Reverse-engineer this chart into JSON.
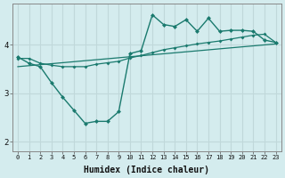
{
  "xlabel": "Humidex (Indice chaleur)",
  "bg_color": "#d4ecee",
  "grid_color": "#c0d8da",
  "line_color": "#1a7a6e",
  "xlim": [
    -0.5,
    23.5
  ],
  "ylim": [
    1.8,
    4.85
  ],
  "yticks": [
    2,
    3,
    4
  ],
  "xticks": [
    0,
    1,
    2,
    3,
    4,
    5,
    6,
    7,
    8,
    9,
    10,
    11,
    12,
    13,
    14,
    15,
    16,
    17,
    18,
    19,
    20,
    21,
    22,
    23
  ],
  "series1_x": [
    0,
    1,
    2,
    3,
    4,
    5,
    6,
    7,
    8,
    9,
    10,
    11,
    12,
    13,
    14,
    15,
    16,
    17,
    18,
    19,
    20,
    21,
    22,
    23
  ],
  "series1_y": [
    3.75,
    3.62,
    3.55,
    3.22,
    2.92,
    2.65,
    2.38,
    2.42,
    2.42,
    2.62,
    3.82,
    3.88,
    4.62,
    4.42,
    4.38,
    4.52,
    4.28,
    4.55,
    4.28,
    4.3,
    4.3,
    4.28,
    4.1,
    4.05
  ],
  "series2_x": [
    0,
    1,
    2,
    3,
    4,
    5,
    6,
    7,
    8,
    9,
    10,
    11,
    12,
    13,
    14,
    15,
    16,
    17,
    18,
    19,
    20,
    21,
    22,
    23
  ],
  "series2_y": [
    3.72,
    3.72,
    3.62,
    3.58,
    3.55,
    3.55,
    3.55,
    3.6,
    3.63,
    3.66,
    3.73,
    3.78,
    3.84,
    3.9,
    3.94,
    3.98,
    4.02,
    4.05,
    4.08,
    4.12,
    4.16,
    4.2,
    4.22,
    4.05
  ],
  "series3_x": [
    0,
    23
  ],
  "series3_y": [
    3.55,
    4.02
  ]
}
